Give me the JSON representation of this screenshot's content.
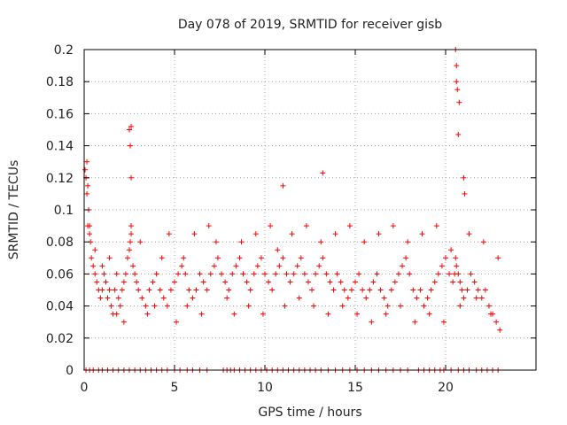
{
  "chart_data": {
    "type": "scatter",
    "title": "Day 078 of 2019, SRMTID for receiver gisb",
    "xlabel": "GPS time / hours",
    "ylabel": "SRMTID / TECUs",
    "xlim": [
      0,
      25
    ],
    "ylim": [
      0,
      0.2
    ],
    "xticks": [
      0,
      5,
      10,
      15,
      20
    ],
    "xtick_labels": [
      "0",
      "5",
      "10",
      "15",
      "20"
    ],
    "yticks": [
      0,
      0.02,
      0.04,
      0.06,
      0.08,
      0.1,
      0.12,
      0.14,
      0.16,
      0.18,
      0.2
    ],
    "ytick_labels": [
      "0",
      "0.02",
      "0.04",
      "0.06",
      "0.08",
      "0.1",
      "0.12",
      "0.14",
      "0.16",
      "0.18",
      "0.2"
    ],
    "grid": true,
    "marker": "plus",
    "color": "#ff0000",
    "series": [
      {
        "name": "SRMTID",
        "x": [
          0.05,
          0.1,
          0.15,
          0.2,
          0.25,
          0.3,
          0.35,
          0.4,
          0.5,
          0.6,
          0.7,
          0.8,
          0.9,
          1.0,
          1.1,
          1.2,
          1.3,
          1.4,
          1.5,
          1.6,
          1.7,
          1.8,
          1.9,
          2.0,
          2.1,
          2.2,
          2.3,
          2.4,
          2.5,
          2.55,
          2.6,
          2.7,
          2.8,
          2.9,
          3.0,
          3.2,
          3.4,
          3.6,
          3.8,
          4.0,
          4.2,
          4.4,
          4.6,
          4.8,
          5.0,
          5.2,
          5.4,
          5.5,
          5.6,
          5.8,
          6.0,
          6.2,
          6.4,
          6.6,
          6.8,
          7.0,
          7.2,
          7.4,
          7.6,
          7.8,
          8.0,
          8.2,
          8.4,
          8.6,
          8.8,
          9.0,
          9.2,
          9.4,
          9.6,
          9.8,
          10.0,
          10.2,
          10.4,
          10.6,
          10.8,
          11.0,
          11.2,
          11.4,
          11.6,
          11.8,
          12.0,
          12.2,
          12.4,
          12.6,
          12.8,
          13.0,
          13.2,
          13.4,
          13.6,
          13.8,
          14.0,
          14.2,
          14.4,
          14.6,
          14.8,
          15.0,
          15.2,
          15.4,
          15.6,
          15.8,
          16.0,
          16.2,
          16.4,
          16.6,
          16.8,
          17.0,
          17.2,
          17.4,
          17.6,
          17.8,
          18.0,
          18.2,
          18.4,
          18.6,
          18.8,
          19.0,
          19.2,
          19.4,
          19.6,
          19.8,
          20.0,
          20.2,
          20.4,
          20.5,
          20.55,
          20.6,
          20.7,
          20.8,
          20.9,
          21.0,
          21.2,
          21.4,
          21.6,
          21.8,
          22.0,
          22.2,
          22.4,
          22.6,
          22.8,
          23.0,
          0.3,
          0.6,
          1.0,
          1.4,
          1.8,
          2.2,
          2.6,
          3.1,
          3.5,
          3.9,
          4.3,
          4.7,
          5.1,
          5.7,
          6.1,
          6.5,
          6.9,
          7.3,
          7.9,
          8.3,
          8.7,
          9.1,
          9.5,
          9.9,
          10.3,
          10.7,
          11.1,
          11.5,
          11.9,
          12.3,
          12.7,
          13.1,
          13.5,
          13.9,
          14.3,
          14.7,
          15.1,
          15.5,
          15.9,
          16.3,
          16.7,
          17.1,
          17.5,
          17.9,
          18.3,
          18.7,
          19.1,
          19.5,
          19.9,
          20.3,
          20.8,
          21.3,
          21.7,
          22.1,
          22.5,
          22.9,
          2.5,
          2.55,
          2.6,
          2.6,
          20.55,
          20.6,
          20.6,
          20.65,
          20.7,
          20.75,
          0.15,
          0.2,
          13.2,
          11.0,
          21.0,
          21.05
        ],
        "y": [
          0.125,
          0.12,
          0.11,
          0.09,
          0.1,
          0.085,
          0.08,
          0.07,
          0.065,
          0.06,
          0.055,
          0.05,
          0.045,
          0.05,
          0.06,
          0.055,
          0.045,
          0.05,
          0.04,
          0.035,
          0.05,
          0.06,
          0.045,
          0.04,
          0.05,
          0.055,
          0.06,
          0.07,
          0.075,
          0.08,
          0.085,
          0.065,
          0.06,
          0.055,
          0.05,
          0.045,
          0.04,
          0.05,
          0.055,
          0.06,
          0.05,
          0.045,
          0.04,
          0.05,
          0.055,
          0.06,
          0.065,
          0.07,
          0.06,
          0.05,
          0.045,
          0.05,
          0.06,
          0.055,
          0.05,
          0.06,
          0.065,
          0.07,
          0.06,
          0.055,
          0.05,
          0.06,
          0.065,
          0.07,
          0.06,
          0.055,
          0.05,
          0.06,
          0.065,
          0.07,
          0.06,
          0.055,
          0.05,
          0.06,
          0.065,
          0.07,
          0.06,
          0.055,
          0.06,
          0.065,
          0.07,
          0.06,
          0.055,
          0.05,
          0.06,
          0.065,
          0.07,
          0.06,
          0.055,
          0.05,
          0.06,
          0.055,
          0.05,
          0.045,
          0.05,
          0.055,
          0.06,
          0.05,
          0.045,
          0.05,
          0.055,
          0.06,
          0.05,
          0.045,
          0.04,
          0.05,
          0.055,
          0.06,
          0.065,
          0.07,
          0.06,
          0.05,
          0.045,
          0.05,
          0.04,
          0.045,
          0.05,
          0.055,
          0.06,
          0.065,
          0.07,
          0.06,
          0.055,
          0.06,
          0.07,
          0.065,
          0.06,
          0.055,
          0.05,
          0.045,
          0.05,
          0.06,
          0.055,
          0.05,
          0.045,
          0.05,
          0.04,
          0.035,
          0.03,
          0.025,
          0.09,
          0.075,
          0.065,
          0.07,
          0.035,
          0.03,
          0.09,
          0.08,
          0.035,
          0.04,
          0.07,
          0.085,
          0.03,
          0.04,
          0.085,
          0.035,
          0.09,
          0.08,
          0.045,
          0.035,
          0.08,
          0.04,
          0.085,
          0.035,
          0.09,
          0.075,
          0.04,
          0.085,
          0.045,
          0.09,
          0.04,
          0.08,
          0.035,
          0.085,
          0.04,
          0.09,
          0.035,
          0.08,
          0.03,
          0.085,
          0.035,
          0.09,
          0.04,
          0.08,
          0.03,
          0.085,
          0.035,
          0.09,
          0.03,
          0.075,
          0.04,
          0.085,
          0.045,
          0.08,
          0.035,
          0.07,
          0.15,
          0.14,
          0.12,
          0.152,
          0.2,
          0.19,
          0.18,
          0.175,
          0.147,
          0.167,
          0.13,
          0.115,
          0.123,
          0.115,
          0.12,
          0.11
        ],
        "zero_x": [
          0.1,
          0.3,
          0.5,
          0.8,
          1.0,
          1.3,
          1.6,
          1.9,
          2.2,
          2.5,
          2.8,
          3.1,
          3.4,
          3.7,
          4.0,
          4.3,
          4.6,
          5.0,
          5.3,
          5.7,
          6.0,
          6.4,
          6.8,
          7.7,
          7.9,
          8.1,
          8.3,
          8.6,
          8.9,
          9.2,
          9.5,
          9.8,
          10.1,
          10.4,
          10.7,
          11.0,
          11.3,
          11.6,
          11.9,
          12.2,
          12.5,
          12.8,
          13.1,
          13.5,
          13.9,
          14.3,
          14.7,
          15.1,
          15.5,
          15.9,
          16.3,
          16.7,
          17.1,
          17.5,
          17.9,
          18.5,
          18.8,
          19.1,
          19.4,
          19.7,
          19.9,
          20.3,
          20.7,
          21.0,
          21.3,
          21.7,
          22.0,
          22.3,
          22.6,
          22.9
        ]
      }
    ]
  }
}
